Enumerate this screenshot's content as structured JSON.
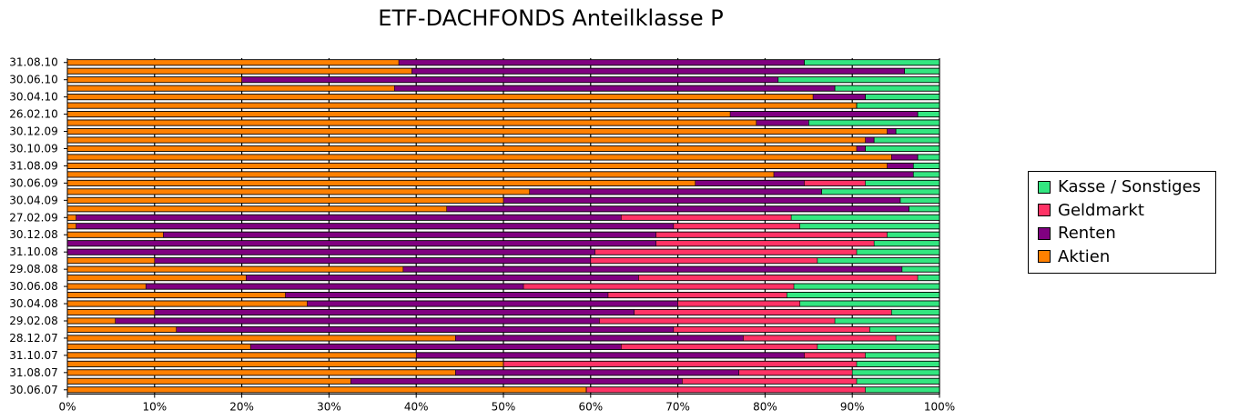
{
  "chart_data": {
    "type": "bar",
    "orientation": "horizontal",
    "stacked": true,
    "title": "ETF-DACHFONDS Anteilklasse P",
    "xlim": [
      0,
      100
    ],
    "x_ticks": [
      "0%",
      "10%",
      "20%",
      "30%",
      "40%",
      "50%",
      "60%",
      "70%",
      "80%",
      "90%",
      "100%"
    ],
    "grid": true,
    "legend_position": "right",
    "categories": [
      "31.08.10",
      "",
      "30.06.10",
      "",
      "30.04.10",
      "",
      "26.02.10",
      "",
      "30.12.09",
      "",
      "30.10.09",
      "",
      "31.08.09",
      "",
      "30.06.09",
      "",
      "30.04.09",
      "",
      "27.02.09",
      "",
      "30.12.08",
      "",
      "31.10.08",
      "",
      "29.08.08",
      "",
      "30.06.08",
      "",
      "30.04.08",
      "",
      "29.02.08",
      "",
      "28.12.07",
      "",
      "31.10.07",
      "",
      "31.08.07",
      "",
      "30.06.07"
    ],
    "series": [
      {
        "name": "Aktien",
        "color": "#ff8000",
        "values": [
          38,
          39.5,
          20,
          37.5,
          85.5,
          90.5,
          76,
          79,
          94,
          91.5,
          90.5,
          94.5,
          94,
          81,
          72,
          53,
          50,
          43.5,
          1,
          1,
          11,
          0,
          0,
          10,
          38.5,
          20.5,
          9,
          25,
          27.5,
          10,
          5.5,
          12.5,
          44.5,
          21,
          40,
          50,
          44.5,
          32.5,
          59.5
        ]
      },
      {
        "name": "Renten",
        "color": "#800080",
        "values": [
          46.5,
          56.5,
          61.5,
          50.5,
          6,
          0,
          21.5,
          6,
          1,
          1,
          1,
          3,
          3,
          16,
          12.5,
          33.5,
          45.5,
          53,
          62.5,
          68.5,
          56.5,
          67.5,
          60.5,
          50,
          57.2,
          45,
          43.3,
          37,
          42.5,
          55,
          55.5,
          57,
          33,
          42.5,
          44.5,
          0,
          32.5,
          38,
          0
        ]
      },
      {
        "name": "Geldmarkt",
        "color": "#ff3366",
        "values": [
          0,
          0,
          0,
          0,
          0,
          0,
          0,
          0,
          0,
          0,
          0,
          0,
          0,
          0,
          7,
          0,
          0,
          0,
          19.5,
          14.5,
          26.5,
          25,
          30,
          26,
          0,
          32,
          31,
          20.5,
          14,
          29.5,
          27,
          22.5,
          17.5,
          22.5,
          7,
          40.5,
          13,
          20,
          32
        ]
      },
      {
        "name": "Kasse / Sonstiges",
        "color": "#33e680",
        "values": [
          15.5,
          4,
          18.5,
          12,
          8.5,
          9.5,
          2.5,
          15,
          5,
          7.5,
          8.5,
          2.5,
          3,
          3,
          8.5,
          13.5,
          4.5,
          3.5,
          17,
          16,
          6,
          7.5,
          9.5,
          14,
          4.3,
          2.5,
          16.7,
          17.5,
          16,
          5.5,
          12,
          8,
          5,
          14,
          8.5,
          9.5,
          10,
          9.5,
          8.5
        ]
      }
    ]
  }
}
